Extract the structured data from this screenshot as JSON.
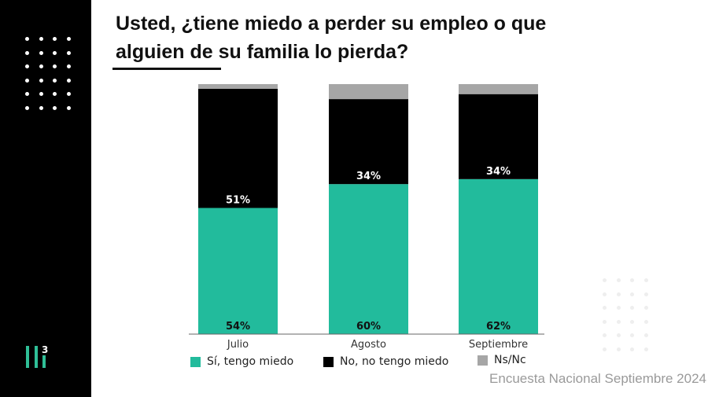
{
  "title_line1": "Usted, ¿tiene miedo a perder su empleo o que",
  "title_line2": "alguien de su familia lo pierda?",
  "footer": "Encuesta Nacional Septiembre 2024",
  "logo_text": "3",
  "chart_data": {
    "type": "bar",
    "stacked": true,
    "categories": [
      "Julio",
      "Agosto",
      "Septiembre"
    ],
    "series": [
      {
        "name": "Sí, tengo miedo",
        "values": [
          54,
          60,
          62
        ],
        "labels": [
          "54%",
          "60%",
          "62%"
        ],
        "color": "#22bb9c"
      },
      {
        "name": "No, no tengo miedo",
        "values": [
          51,
          34,
          34
        ],
        "labels": [
          "51%",
          "34%",
          "34%"
        ],
        "color": "#000000"
      },
      {
        "name": "Ns/Nc",
        "values": [
          2,
          6,
          4
        ],
        "color": "#a6a6a6"
      }
    ],
    "legend": "bottom",
    "grid": false
  }
}
